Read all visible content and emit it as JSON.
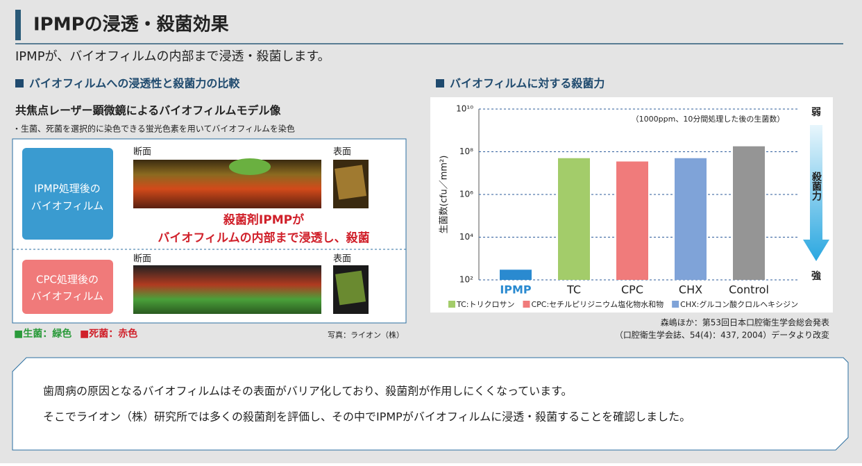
{
  "header": {
    "title": "IPMPの浸透・殺菌効果",
    "subtitle": "IPMPが、バイオフィルムの内部まで浸透・殺菌します。"
  },
  "left": {
    "section_title": "バイオフィルムへの浸透性と殺菌力の比較",
    "heading": "共焦点レーザー顕微鏡によるバイオフィルムモデル像",
    "note": "・生菌、死菌を選択的に染色できる蛍光色素を用いてバイオフィルムを染色",
    "panels": [
      {
        "label": [
          "IPMP処理後の",
          "バイオフィルム"
        ],
        "cross": "断面",
        "surface": "表面"
      },
      {
        "label": [
          "CPC処理後の",
          "バイオフィルム"
        ],
        "cross": "断面",
        "surface": "表面"
      }
    ],
    "callout": [
      "殺菌剤IPMPが",
      "バイオフィルムの内部まで浸透し、殺菌"
    ],
    "live": "■生菌：緑色",
    "dead": "■死菌：赤色",
    "credit": "写真：ライオン（株）"
  },
  "right": {
    "section_title": "バイオフィルムに対する殺菌力",
    "scale": {
      "weak": "弱",
      "label": "殺菌力",
      "strong": "強"
    },
    "source": [
      "森嶋ほか：第53回日本口腔衛生学会総会発表",
      "（口腔衛生学会誌、54(4)：437, 2004）データより改変"
    ]
  },
  "chart_data": {
    "type": "bar",
    "note": "（1000ppm、10分間処理した後の生菌数）",
    "y_label": "生菌数(cfu／mm²)",
    "log_scale": true,
    "grid": true,
    "categories": [
      "IPMP",
      "TC",
      "CPC",
      "CHX",
      "Control"
    ],
    "values": [
      300,
      50000000,
      35000000,
      50000000,
      180000000
    ],
    "colors": [
      "#2a8ad0",
      "#a3cc6a",
      "#f07b7b",
      "#7fa3d8",
      "#959595"
    ],
    "ylim": [
      100,
      10000000000
    ],
    "yticks": [
      {
        "value": 100,
        "label": "10²"
      },
      {
        "value": 10000,
        "label": "10⁴"
      },
      {
        "value": 1000000,
        "label": "10⁶"
      },
      {
        "value": 100000000,
        "label": "10⁸"
      },
      {
        "value": 10000000000,
        "label": "10¹⁰"
      }
    ],
    "legend": [
      {
        "text": "TC:トリクロサン",
        "color": "#a3cc6a"
      },
      {
        "text": "CPC:セチルピリジニウム塩化物水和物",
        "color": "#f07b7b"
      },
      {
        "text": "CHX:グルコン酸クロルヘキシジン",
        "color": "#7fa3d8"
      }
    ]
  },
  "footer": {
    "lines": [
      "歯周病の原因となるバイオフィルムはその表面がバリア化しており、殺菌剤が作用しにくくなっています。",
      "そこでライオン（株）研究所では多くの殺菌剤を評価し、その中でIPMPがバイオフィルムに浸透・殺菌することを確認しました。"
    ]
  }
}
